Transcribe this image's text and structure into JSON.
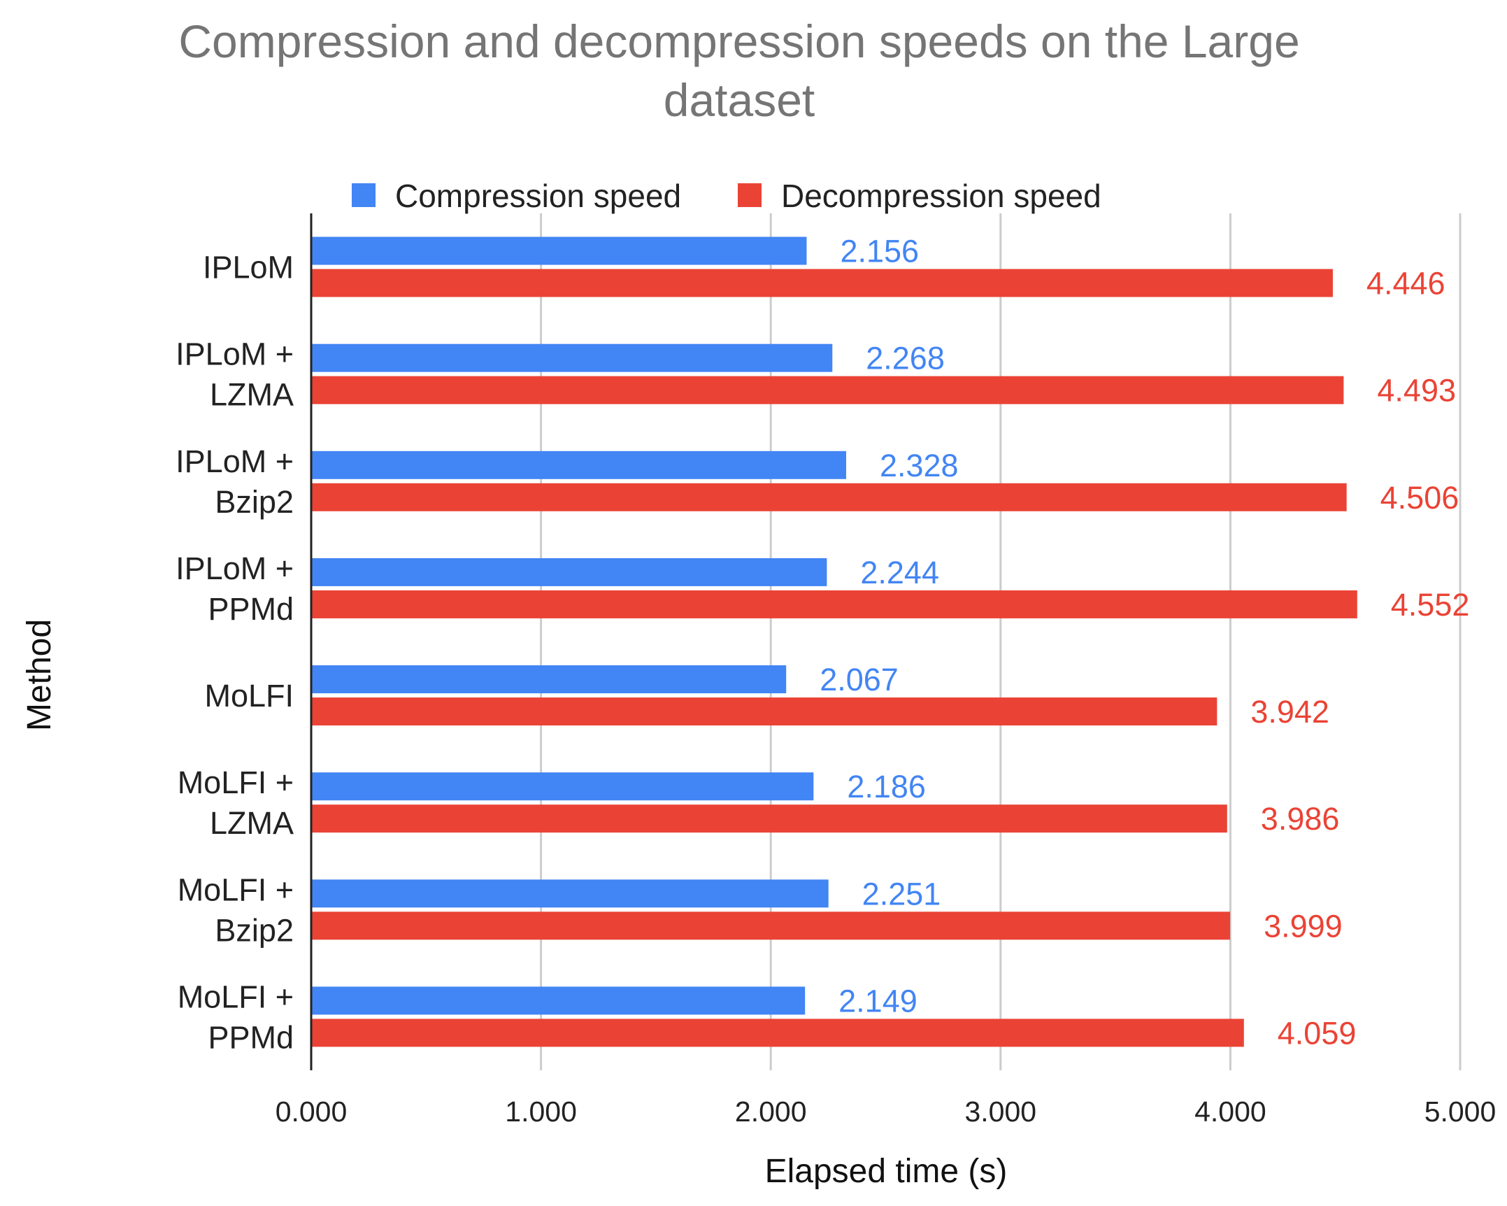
{
  "chart_data": {
    "type": "bar",
    "orientation": "horizontal",
    "title": "Compression and decompression speeds on the Large dataset",
    "title_lines": [
      "Compression and decompression speeds on the Large",
      "dataset"
    ],
    "xlabel": "Elapsed time (s)",
    "ylabel": "Method",
    "xlim": [
      0,
      5
    ],
    "x_ticks": [
      0,
      1,
      2,
      3,
      4,
      5
    ],
    "x_tick_labels": [
      "0.000",
      "1.000",
      "2.000",
      "3.000",
      "4.000",
      "5.000"
    ],
    "grid": true,
    "legend_position": "top",
    "categories": [
      [
        "IPLoM"
      ],
      [
        "IPLoM +",
        "LZMA"
      ],
      [
        "IPLoM +",
        "Bzip2"
      ],
      [
        "IPLoM +",
        "PPMd"
      ],
      [
        "MoLFI"
      ],
      [
        "MoLFI +",
        "LZMA"
      ],
      [
        "MoLFI +",
        "Bzip2"
      ],
      [
        "MoLFI +",
        "PPMd"
      ]
    ],
    "series": [
      {
        "name": "Compression speed",
        "color": "#4285f4",
        "values": [
          2.156,
          2.268,
          2.328,
          2.244,
          2.067,
          2.186,
          2.251,
          2.149
        ],
        "labels": [
          "2.156",
          "2.268",
          "2.328",
          "2.244",
          "2.067",
          "2.186",
          "2.251",
          "2.149"
        ]
      },
      {
        "name": "Decompression speed",
        "color": "#ea4335",
        "values": [
          4.446,
          4.493,
          4.506,
          4.552,
          3.942,
          3.986,
          3.999,
          4.059
        ],
        "labels": [
          "4.446",
          "4.493",
          "4.506",
          "4.552",
          "3.942",
          "3.986",
          "3.999",
          "4.059"
        ]
      }
    ]
  }
}
